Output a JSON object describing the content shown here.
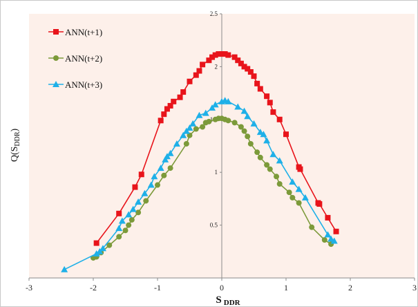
{
  "chart_data": {
    "type": "line",
    "xlabel": "S",
    "xlabel_sub": "DDR",
    "ylabel": "Q(S",
    "ylabel_sub": "DDR",
    "ylabel_close": ")",
    "xlim": [
      -3,
      3
    ],
    "ylim": [
      0,
      2.5
    ],
    "x_ticks": [
      -3,
      -2,
      -1,
      0,
      1,
      2,
      3
    ],
    "y_ticks": [
      0.5,
      1,
      1.5,
      2,
      2.5
    ],
    "x_tick_labels": [
      "-3",
      "-2",
      "-1",
      "0",
      "1",
      "2",
      "3"
    ],
    "y_tick_labels": [
      "0.5",
      "1",
      "1.5",
      "2",
      "2.5"
    ],
    "grid": false,
    "legend_position": "top-left",
    "colors": {
      "plot_background": "#fdf0ea",
      "ann_t1": "#e8141b",
      "ann_t2": "#7c9a3a",
      "ann_t3": "#1eb0e8"
    },
    "series": [
      {
        "name": "ANN(t+1)",
        "marker": "square",
        "color_key": "ann_t1",
        "x": [
          -1.95,
          -1.6,
          -1.35,
          -1.25,
          -0.95,
          -0.9,
          -0.85,
          -0.8,
          -0.75,
          -0.65,
          -0.6,
          -0.5,
          -0.4,
          -0.35,
          -0.3,
          -0.2,
          -0.15,
          -0.1,
          -0.05,
          0.0,
          0.05,
          0.1,
          0.2,
          0.25,
          0.3,
          0.35,
          0.4,
          0.45,
          0.5,
          0.55,
          0.6,
          0.7,
          0.75,
          0.8,
          0.9,
          1.0,
          1.2,
          1.22,
          1.5,
          1.52,
          1.65,
          1.78
        ],
        "y": [
          0.33,
          0.61,
          0.86,
          0.98,
          1.49,
          1.55,
          1.6,
          1.63,
          1.67,
          1.71,
          1.76,
          1.86,
          1.92,
          1.96,
          2.02,
          2.06,
          2.09,
          2.11,
          2.12,
          2.12,
          2.12,
          2.11,
          2.09,
          2.06,
          2.03,
          2.0,
          1.98,
          1.95,
          1.91,
          1.84,
          1.79,
          1.72,
          1.66,
          1.57,
          1.5,
          1.36,
          1.05,
          1.03,
          0.71,
          0.7,
          0.57,
          0.44
        ]
      },
      {
        "name": "ANN(t+2)",
        "marker": "circle",
        "color_key": "ann_t2",
        "x": [
          -2.0,
          -1.95,
          -1.88,
          -1.75,
          -1.6,
          -1.5,
          -1.45,
          -1.4,
          -1.3,
          -1.18,
          -1.0,
          -0.9,
          -0.8,
          -0.55,
          -0.5,
          -0.4,
          -0.3,
          -0.25,
          -0.2,
          -0.1,
          -0.05,
          0.0,
          0.05,
          0.1,
          0.2,
          0.3,
          0.35,
          0.4,
          0.45,
          0.55,
          0.6,
          0.7,
          0.75,
          0.85,
          0.9,
          1.05,
          1.1,
          1.2,
          1.4,
          1.6,
          1.7
        ],
        "y": [
          0.19,
          0.2,
          0.24,
          0.31,
          0.39,
          0.45,
          0.5,
          0.55,
          0.62,
          0.73,
          0.88,
          0.97,
          1.04,
          1.27,
          1.35,
          1.41,
          1.43,
          1.47,
          1.48,
          1.5,
          1.51,
          1.51,
          1.5,
          1.49,
          1.47,
          1.43,
          1.39,
          1.34,
          1.27,
          1.19,
          1.14,
          1.07,
          1.03,
          0.96,
          0.89,
          0.81,
          0.76,
          0.71,
          0.48,
          0.36,
          0.32
        ]
      },
      {
        "name": "ANN(t+3)",
        "marker": "triangle",
        "color_key": "ann_t3",
        "x": [
          -2.45,
          -1.95,
          -1.9,
          -1.85,
          -1.6,
          -1.55,
          -1.45,
          -1.38,
          -1.3,
          -1.2,
          -1.1,
          -1.05,
          -0.95,
          -0.88,
          -0.85,
          -0.8,
          -0.7,
          -0.6,
          -0.55,
          -0.5,
          -0.45,
          -0.35,
          -0.25,
          -0.15,
          -0.1,
          0.0,
          0.05,
          0.1,
          0.25,
          0.35,
          0.4,
          0.5,
          0.6,
          0.65,
          0.7,
          0.8,
          0.9,
          1.1,
          1.2,
          1.3,
          1.65,
          1.7,
          1.75
        ],
        "y": [
          0.08,
          0.23,
          0.25,
          0.28,
          0.47,
          0.54,
          0.6,
          0.65,
          0.72,
          0.8,
          0.88,
          0.96,
          1.04,
          1.12,
          1.15,
          1.18,
          1.27,
          1.35,
          1.39,
          1.42,
          1.46,
          1.54,
          1.56,
          1.61,
          1.64,
          1.67,
          1.68,
          1.67,
          1.62,
          1.58,
          1.53,
          1.46,
          1.38,
          1.36,
          1.3,
          1.17,
          1.11,
          0.91,
          0.84,
          0.76,
          0.41,
          0.37,
          0.35
        ]
      }
    ]
  }
}
